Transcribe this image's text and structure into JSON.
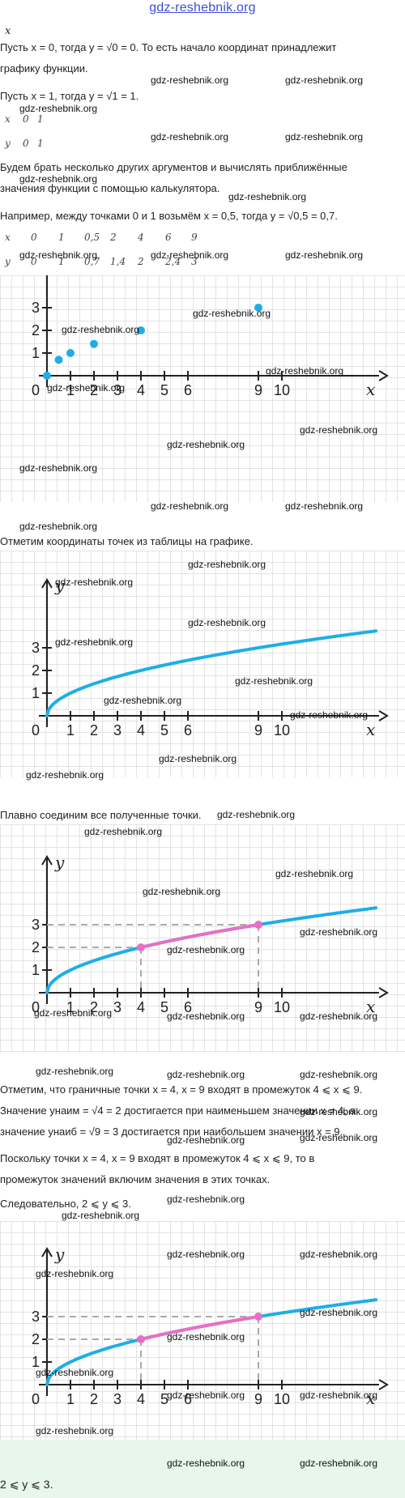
{
  "site_title": "gdz-reshebnik.org",
  "watermark": "gdz-reshebnik.org",
  "lines": {
    "x_label": "x",
    "line1": "Пусть x = 0, тогда y = √0 = 0. То есть начало координат принадлежит",
    "line2": "графику функции.",
    "line3": "Пусть x = 1, тогда y = √1 = 1.",
    "line4": "Будем брать несколько других аргументов и вычислять приближённые",
    "line5": "значения функции с помощью калькулятора.",
    "line6": "Например, между точками 0 и 1 возьмём x = 0,5, тогда y = √0,5 = 0,7.",
    "line7": "Отметим координаты точек из таблицы на графике.",
    "line8": "Плавно соединим все полученные точки.",
    "line9": "Отметим, что граничные точки x = 4, x = 9 входят в промежуток 4 ⩽ x ⩽ 9.",
    "line10": "Значение yнаим = √4 = 2 достигается при наименьшем значении x = 4, а",
    "line11": "значение yнаиб = √9 = 3 достигается при наибольшем значении x = 9.",
    "line12": "Поскольку точки x = 4, x = 9 входят в промежуток 4 ⩽ x ⩽ 9, то в",
    "line13": "промежуток значений включим значения в этих точках.",
    "line14": "Следовательно, 2 ⩽ y ⩽ 3.",
    "final": "2 ⩽ y ⩽ 3."
  },
  "table_small": {
    "row_x": [
      "x",
      "0",
      "1"
    ],
    "row_y": [
      "y",
      "0",
      "1"
    ]
  },
  "table_big": {
    "row_x": [
      "x",
      "0",
      "1",
      "0,5",
      "2",
      "4",
      "6",
      "9"
    ],
    "row_y": [
      "y",
      "0",
      "1",
      "0,7",
      "1,4",
      "2",
      "2,4",
      "3"
    ]
  },
  "chart_data": [
    {
      "type": "scatter",
      "x_ticks": [
        "0",
        "1",
        "2",
        "3",
        "4",
        "5",
        "6",
        "9",
        "10"
      ],
      "y_ticks": [
        "1",
        "2",
        "3"
      ],
      "xlabel": "x",
      "ylabel": "y",
      "points": [
        [
          0,
          0
        ],
        [
          0.5,
          0.7
        ],
        [
          1,
          1
        ],
        [
          2,
          1.4
        ],
        [
          4,
          2
        ],
        [
          9,
          3
        ]
      ],
      "point_color": "#1eaee6"
    },
    {
      "type": "line",
      "function": "y = √x",
      "x_ticks": [
        "0",
        "1",
        "2",
        "3",
        "4",
        "5",
        "6",
        "9",
        "10"
      ],
      "y_ticks": [
        "1",
        "2",
        "3"
      ],
      "xlabel": "x",
      "ylabel": "y",
      "xlim": [
        0,
        14
      ],
      "line_color": "#1eaee6"
    },
    {
      "type": "line",
      "function": "y = √x",
      "x_ticks": [
        "0",
        "1",
        "2",
        "3",
        "4",
        "5",
        "6",
        "9",
        "10"
      ],
      "y_ticks": [
        "1",
        "2",
        "3"
      ],
      "xlabel": "x",
      "ylabel": "y",
      "xlim": [
        0,
        14
      ],
      "line_color": "#1eaee6",
      "highlight": {
        "from": 4,
        "to": 9,
        "color": "#e86fc4"
      }
    },
    {
      "type": "line",
      "function": "y = √x",
      "x_ticks": [
        "0",
        "1",
        "2",
        "3",
        "4",
        "5",
        "6",
        "9",
        "10"
      ],
      "y_ticks": [
        "1",
        "2",
        "3"
      ],
      "xlabel": "x",
      "ylabel": "y",
      "xlim": [
        0,
        14
      ],
      "line_color": "#1eaee6",
      "highlight": {
        "from": 4,
        "to": 9,
        "color": "#e86fc4"
      }
    }
  ]
}
